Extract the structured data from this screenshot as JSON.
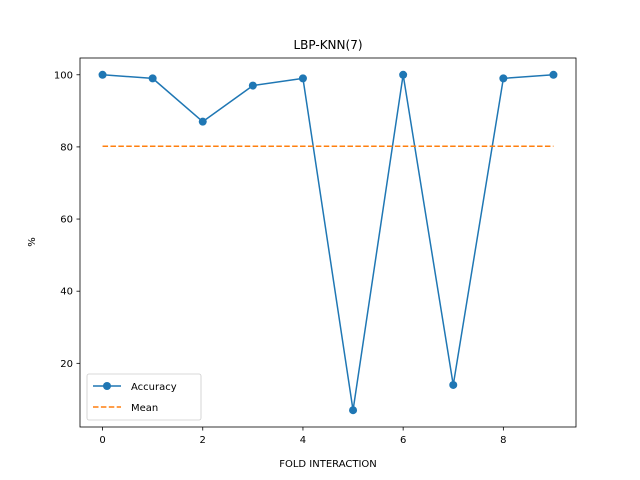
{
  "chart_data": {
    "type": "line",
    "title": "LBP-KNN(7)",
    "xlabel": "FOLD INTERACTION",
    "ylabel": "%",
    "x": [
      0,
      1,
      2,
      3,
      4,
      5,
      6,
      7,
      8,
      9
    ],
    "xlim": [
      -0.45,
      9.45
    ],
    "ylim": [
      2.35,
      104.65
    ],
    "xticks": [
      0,
      2,
      4,
      6,
      8
    ],
    "yticks": [
      20,
      40,
      60,
      80,
      100
    ],
    "grid": false,
    "legend_position": "lower-left",
    "series": [
      {
        "name": "Accuracy",
        "style": "solid-line-with-circle-markers",
        "color": "#1f77b4",
        "values": [
          100,
          99,
          87,
          97,
          99,
          7,
          100,
          14,
          99,
          100
        ]
      },
      {
        "name": "Mean",
        "style": "dashed-line",
        "color": "#ff7f0e",
        "values": [
          80.2,
          80.2,
          80.2,
          80.2,
          80.2,
          80.2,
          80.2,
          80.2,
          80.2,
          80.2
        ]
      }
    ]
  }
}
